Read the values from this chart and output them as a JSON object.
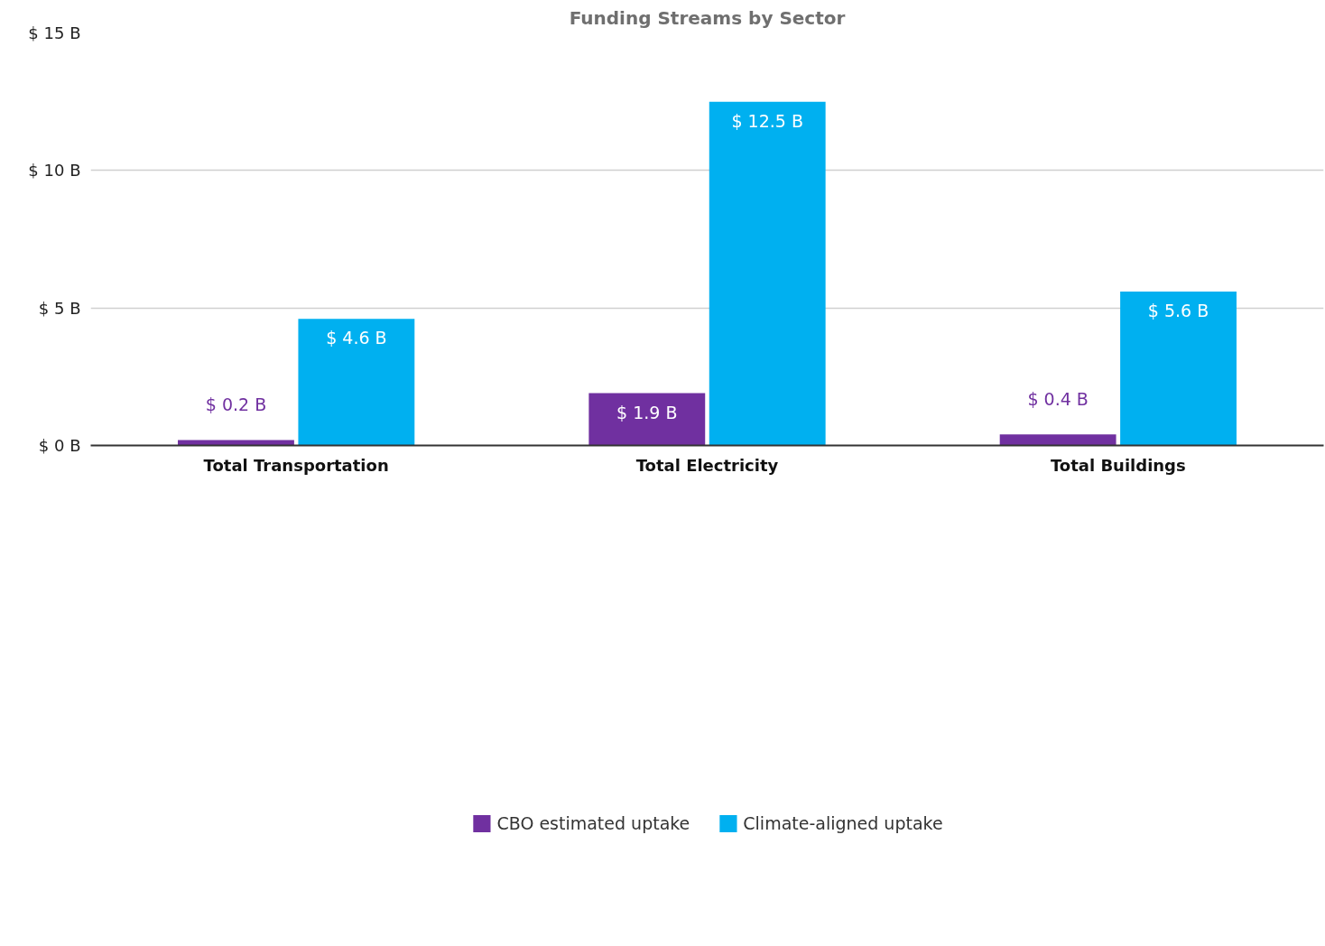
{
  "chart_data": {
    "type": "bar",
    "title": "Funding Streams by Sector",
    "categories": [
      "Total Transportation",
      "Total Electricity",
      "Total Buildings"
    ],
    "series": [
      {
        "name": "CBO estimated uptake",
        "color": "#7030a0",
        "values": [
          0.2,
          1.9,
          0.4
        ],
        "value_labels": [
          "$ 0.2 B",
          "$ 1.9 B",
          "$ 0.4 B"
        ]
      },
      {
        "name": "Climate-aligned uptake",
        "color": "#00b0f0",
        "values": [
          4.6,
          12.5,
          5.6
        ],
        "value_labels": [
          "$ 4.6 B",
          "$ 12.5 B",
          "$ 5.6 B"
        ]
      }
    ],
    "ylim": [
      0,
      15
    ],
    "yticks": [
      {
        "value": 0,
        "label": "$ 0 B"
      },
      {
        "value": 5,
        "label": "$ 5 B"
      },
      {
        "value": 10,
        "label": "$ 10 B"
      },
      {
        "value": 15,
        "label": "$ 15 B"
      }
    ],
    "grid": "y",
    "legend": "bottom"
  }
}
